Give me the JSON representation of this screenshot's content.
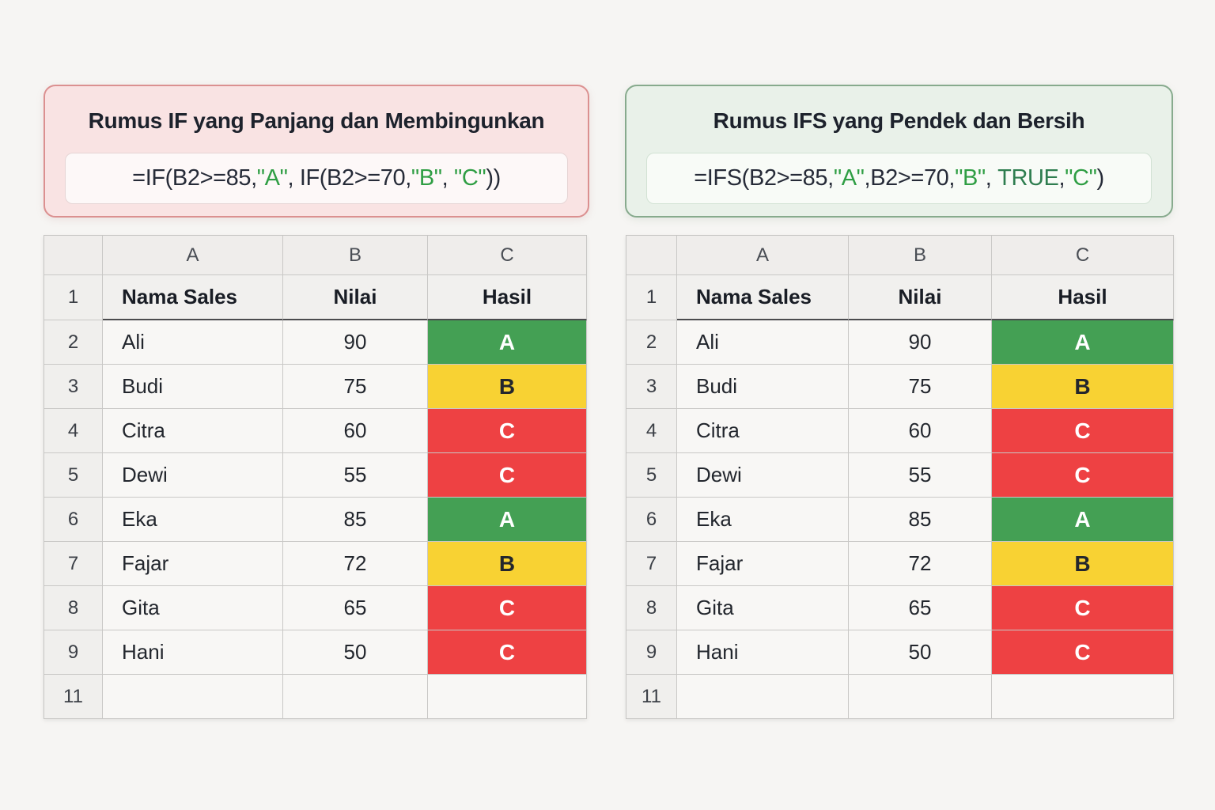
{
  "panels": {
    "left": {
      "title": "Rumus IF yang Panjang dan Membingunkan",
      "formula": [
        {
          "t": "=IF(B2>=85,",
          "c": "dark"
        },
        {
          "t": "\"A\"",
          "c": "green"
        },
        {
          "t": ", IF(B2>=70,",
          "c": "dark"
        },
        {
          "t": "\"B\"",
          "c": "green"
        },
        {
          "t": ", ",
          "c": "dark"
        },
        {
          "t": "\"C\"",
          "c": "green"
        },
        {
          "t": "))",
          "c": "dark"
        }
      ],
      "accent_border": "#db9090",
      "accent_bg": "#f9e3e3"
    },
    "right": {
      "title": "Rumus IFS yang Pendek dan Bersih",
      "formula": [
        {
          "t": "=IFS(B2>=85,",
          "c": "dark"
        },
        {
          "t": "\"A\"",
          "c": "green"
        },
        {
          "t": ",B2>=70,",
          "c": "dark"
        },
        {
          "t": "\"B\"",
          "c": "green"
        },
        {
          "t": ", ",
          "c": "dark"
        },
        {
          "t": "TRUE",
          "c": "truegreen"
        },
        {
          "t": ",",
          "c": "dark"
        },
        {
          "t": "\"C\"",
          "c": "green"
        },
        {
          "t": ")",
          "c": "dark"
        }
      ],
      "accent_border": "#87aa8d",
      "accent_bg": "#e9f1e9"
    }
  },
  "spreadsheet": {
    "column_letters": [
      "A",
      "B",
      "C"
    ],
    "header_row": {
      "num": "1",
      "name": "Nama Sales",
      "nilai": "Nilai",
      "hasil": "Hasil"
    },
    "rows": [
      {
        "num": "2",
        "name": "Ali",
        "nilai": "90",
        "hasil": "A",
        "color": "green"
      },
      {
        "num": "3",
        "name": "Budi",
        "nilai": "75",
        "hasil": "B",
        "color": "yellow"
      },
      {
        "num": "4",
        "name": "Citra",
        "nilai": "60",
        "hasil": "C",
        "color": "red"
      },
      {
        "num": "5",
        "name": "Dewi",
        "nilai": "55",
        "hasil": "C",
        "color": "red"
      },
      {
        "num": "6",
        "name": "Eka",
        "nilai": "85",
        "hasil": "A",
        "color": "green"
      },
      {
        "num": "7",
        "name": "Fajar",
        "nilai": "72",
        "hasil": "B",
        "color": "yellow"
      },
      {
        "num": "8",
        "name": "Gita",
        "nilai": "65",
        "hasil": "C",
        "color": "red"
      },
      {
        "num": "9",
        "name": "Hani",
        "nilai": "50",
        "hasil": "C",
        "color": "red"
      },
      {
        "num": "11",
        "name": "",
        "nilai": "",
        "hasil": "",
        "color": "none"
      }
    ]
  },
  "colors": {
    "page_bg": "#f6f5f3",
    "result_green": "#44a054",
    "result_yellow": "#f8d233",
    "result_red": "#ee4143",
    "formula_green": "#2f9e44",
    "formula_true_green": "#2e7d4f",
    "formula_dark": "#262b38"
  }
}
